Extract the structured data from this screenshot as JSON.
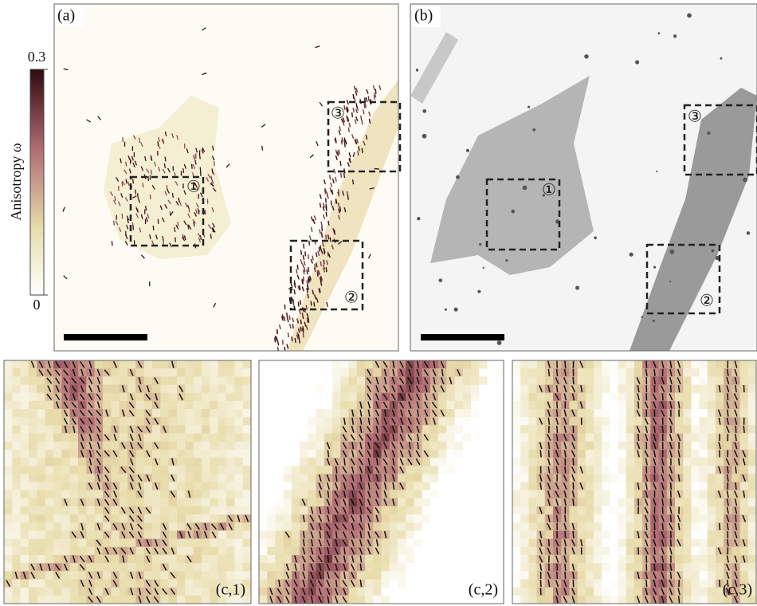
{
  "colorbar": {
    "label": "Anisotropy ω",
    "ticks": [
      0,
      0.3
    ]
  },
  "panels": {
    "a": {
      "label": "(a)",
      "regions": [
        "①",
        "②",
        "③"
      ]
    },
    "b": {
      "label": "(b)",
      "regions": [
        "①",
        "②",
        "③"
      ]
    },
    "c1": {
      "label": "(c,1)"
    },
    "c2": {
      "label": "(c,2)"
    },
    "c3": {
      "label": "(c,3)"
    }
  }
}
